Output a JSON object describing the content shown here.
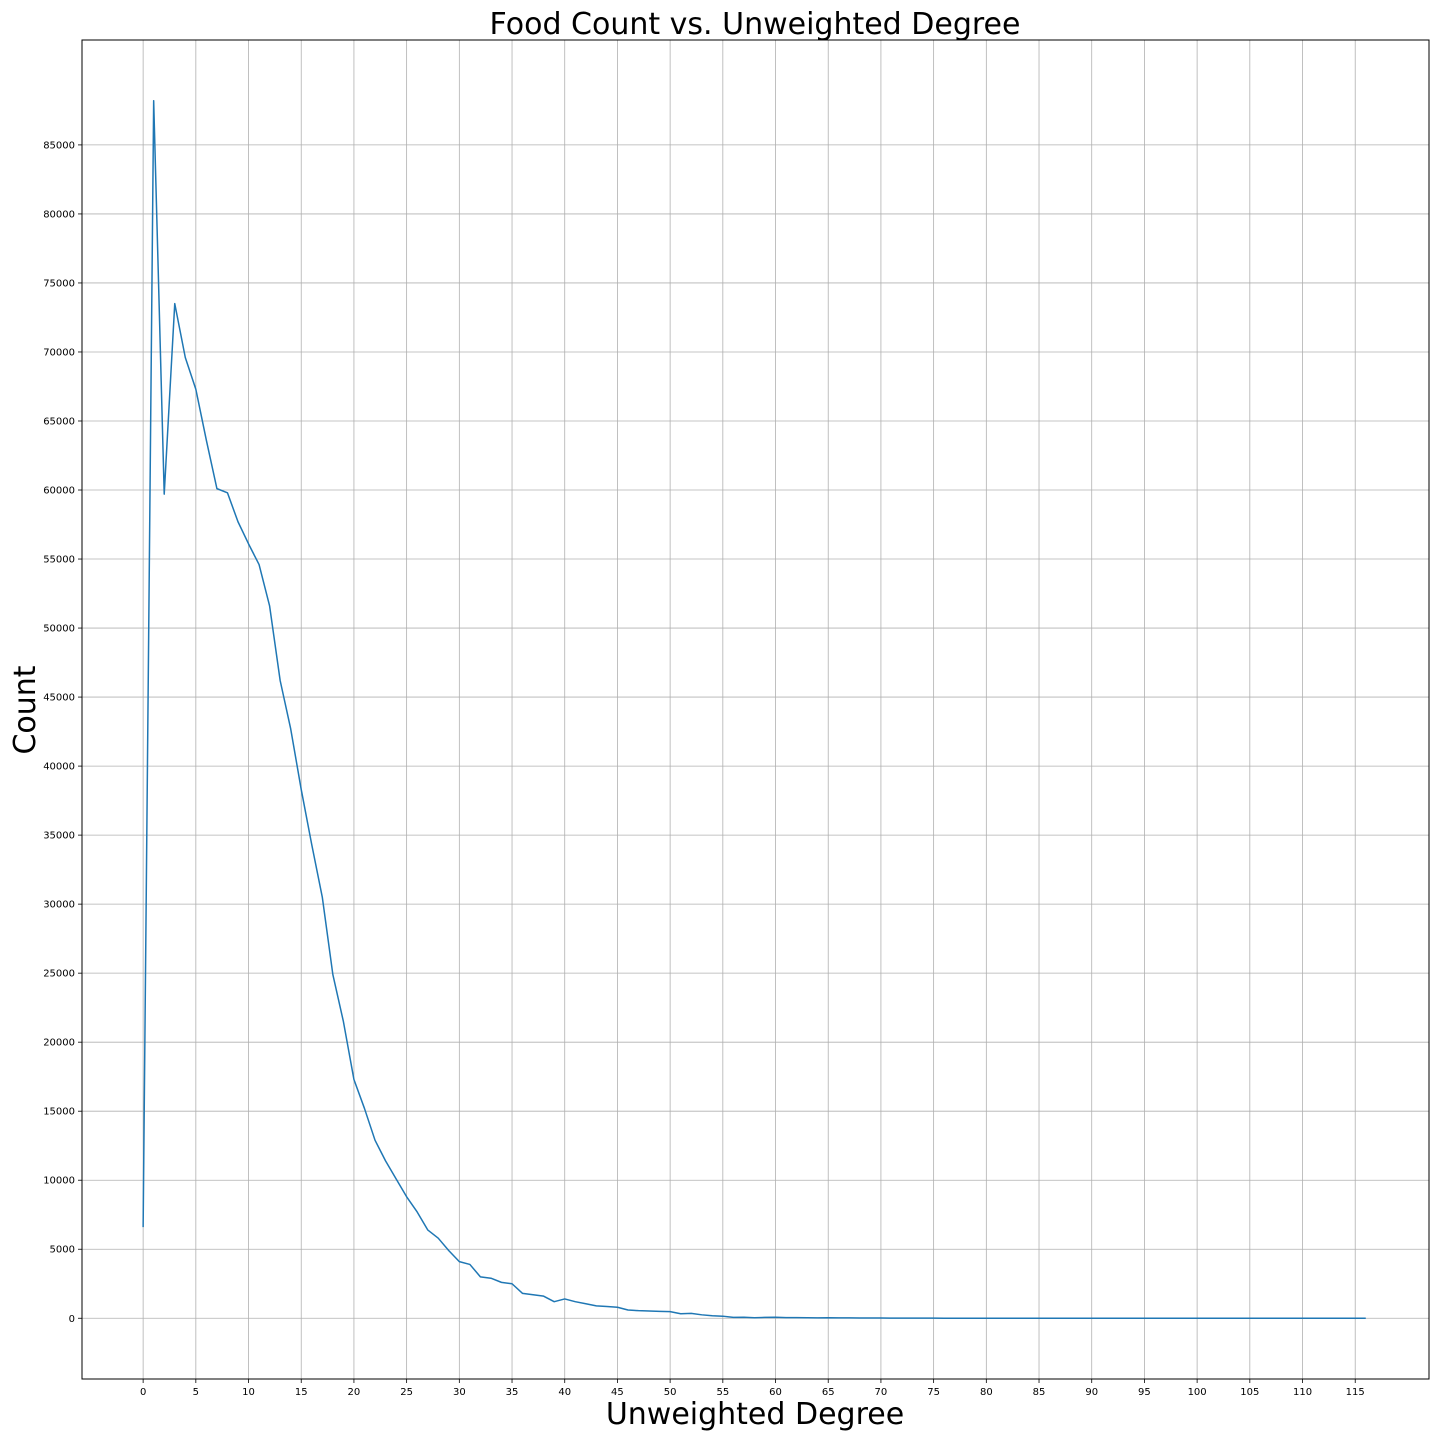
{
  "chart_data": {
    "type": "line",
    "title": "Food Count vs. Unweighted Degree",
    "xlabel": "Unweighted Degree",
    "ylabel": "Count",
    "grid": true,
    "color": "#1f77b4",
    "xlim": [
      -5.8,
      122
    ],
    "ylim": [
      -4400,
      92600
    ],
    "x_ticks": [
      0,
      5,
      10,
      15,
      20,
      25,
      30,
      35,
      40,
      45,
      50,
      55,
      60,
      65,
      70,
      75,
      80,
      85,
      90,
      95,
      100,
      105,
      110,
      115
    ],
    "y_ticks": [
      0,
      5000,
      10000,
      15000,
      20000,
      25000,
      30000,
      35000,
      40000,
      45000,
      50000,
      55000,
      60000,
      65000,
      70000,
      75000,
      80000,
      85000
    ],
    "x": [
      0,
      1,
      2,
      3,
      4,
      5,
      6,
      7,
      8,
      9,
      10,
      11,
      12,
      13,
      14,
      15,
      16,
      17,
      18,
      19,
      20,
      21,
      22,
      23,
      24,
      25,
      26,
      27,
      28,
      29,
      30,
      31,
      32,
      33,
      34,
      35,
      36,
      37,
      38,
      39,
      40,
      41,
      42,
      43,
      44,
      45,
      46,
      47,
      48,
      49,
      50,
      51,
      52,
      53,
      54,
      55,
      56,
      57,
      58,
      59,
      60,
      61,
      62,
      63,
      64,
      65,
      66,
      67,
      68,
      69,
      70,
      71,
      72,
      73,
      74,
      75,
      76,
      77,
      78,
      79,
      80,
      81,
      82,
      83,
      84,
      85,
      86,
      87,
      88,
      89,
      90,
      91,
      92,
      93,
      94,
      95,
      96,
      97,
      98,
      99,
      100,
      101,
      102,
      103,
      104,
      105,
      106,
      107,
      108,
      109,
      110,
      111,
      112,
      113,
      114,
      115,
      116
    ],
    "values": [
      6600,
      88200,
      59700,
      73500,
      69600,
      67300,
      63600,
      60100,
      59800,
      57700,
      56100,
      54600,
      51600,
      46200,
      42700,
      38300,
      34300,
      30500,
      24900,
      21500,
      17300,
      15200,
      12900,
      11400,
      10100,
      8800,
      7700,
      6400,
      5800,
      4900,
      4100,
      3900,
      3000,
      2900,
      2600,
      2500,
      1800,
      1700,
      1600,
      1200,
      1400,
      1200,
      1050,
      900,
      850,
      800,
      600,
      550,
      530,
      500,
      480,
      330,
      350,
      250,
      180,
      150,
      60,
      70,
      40,
      60,
      70,
      50,
      50,
      40,
      30,
      40,
      30,
      25,
      20,
      20,
      15,
      10,
      10,
      8,
      8,
      6,
      5,
      5,
      4,
      4,
      3,
      3,
      3,
      2,
      2,
      2,
      2,
      2,
      1,
      1,
      1,
      1,
      1,
      1,
      1,
      1,
      1,
      1,
      1,
      1,
      1,
      1,
      1,
      1,
      1,
      1,
      1,
      1,
      1,
      1,
      1,
      1,
      1,
      1,
      1,
      1,
      1
    ]
  }
}
